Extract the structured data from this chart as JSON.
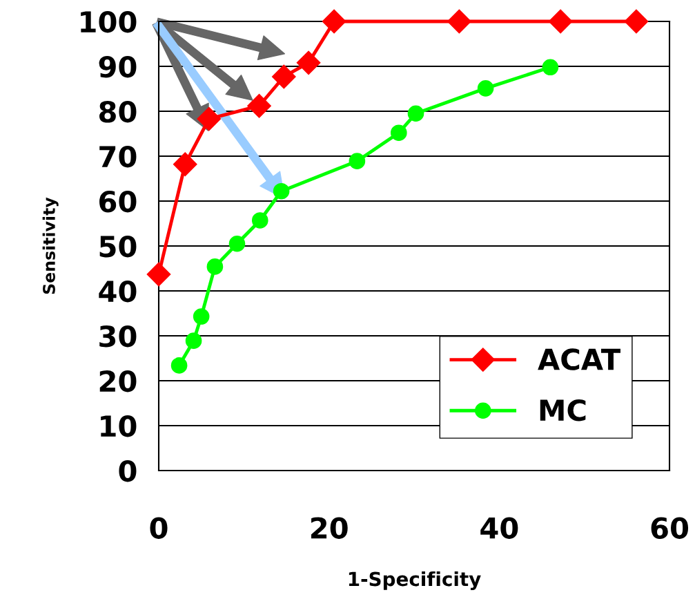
{
  "chart_data": {
    "type": "line",
    "xlabel": "1-Specificity",
    "ylabel": "Sensitivity",
    "xlim": [
      0,
      60
    ],
    "xticks": [
      0,
      20,
      40,
      60
    ],
    "ylim": [
      0,
      100
    ],
    "yticks": [
      0,
      10,
      20,
      30,
      40,
      50,
      60,
      70,
      80,
      90,
      100
    ],
    "grid": "y",
    "legend": "bottom right",
    "series": [
      {
        "name": "ACAT",
        "color": "#ff0000",
        "marker": "diamond",
        "x": [
          0,
          3.1,
          5.9,
          11.8,
          14.7,
          17.6,
          20.6,
          35.3,
          47.2,
          56.1
        ],
        "values": [
          43.7,
          68.2,
          78.3,
          81.2,
          87.7,
          90.8,
          100,
          100,
          100,
          100
        ]
      },
      {
        "name": "MC",
        "color": "#00ff00",
        "marker": "circle",
        "x": [
          2.4,
          4.1,
          5.0,
          6.6,
          9.2,
          11.9,
          14.4,
          23.3,
          28.2,
          30.2,
          38.4,
          46.0
        ],
        "values": [
          23.4,
          28.9,
          34.3,
          45.4,
          50.5,
          55.7,
          62.2,
          68.9,
          75.2,
          79.5,
          85.1,
          89.8
        ]
      }
    ]
  }
}
